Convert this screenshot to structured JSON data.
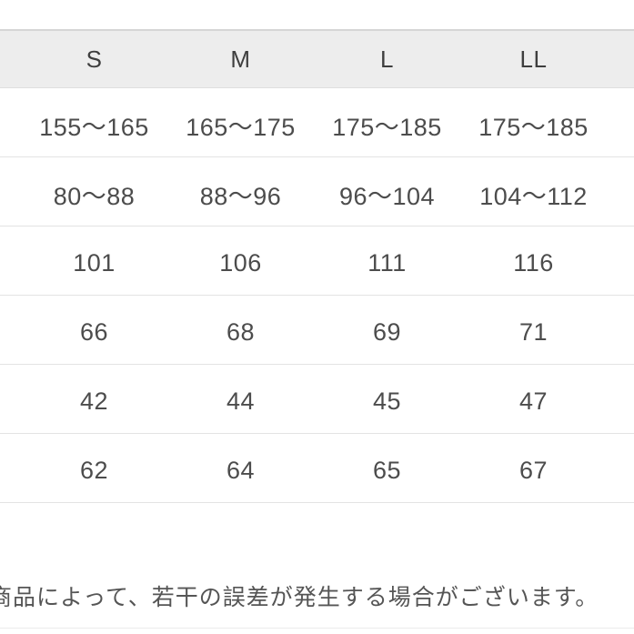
{
  "chart_data": {
    "type": "table",
    "title": "",
    "columns": [
      "S",
      "M",
      "L",
      "LL"
    ],
    "rows": [
      [
        "155〜165",
        "165〜175",
        "175〜185",
        "175〜185"
      ],
      [
        "80〜88",
        "88〜96",
        "96〜104",
        "104〜112"
      ],
      [
        "101",
        "106",
        "111",
        "116"
      ],
      [
        "66",
        "68",
        "69",
        "71"
      ],
      [
        "42",
        "44",
        "45",
        "47"
      ],
      [
        "62",
        "64",
        "65",
        "67"
      ]
    ]
  },
  "note": "商品によって、若干の誤差が発生する場合がございます。",
  "colors": {
    "header_bg": "#ededed",
    "header_border": "#d6d6d6",
    "row_divider": "#e3e3e3",
    "header_text": "#3e3e3e",
    "cell_text": "#4c4c4c",
    "note_text": "#555555"
  }
}
